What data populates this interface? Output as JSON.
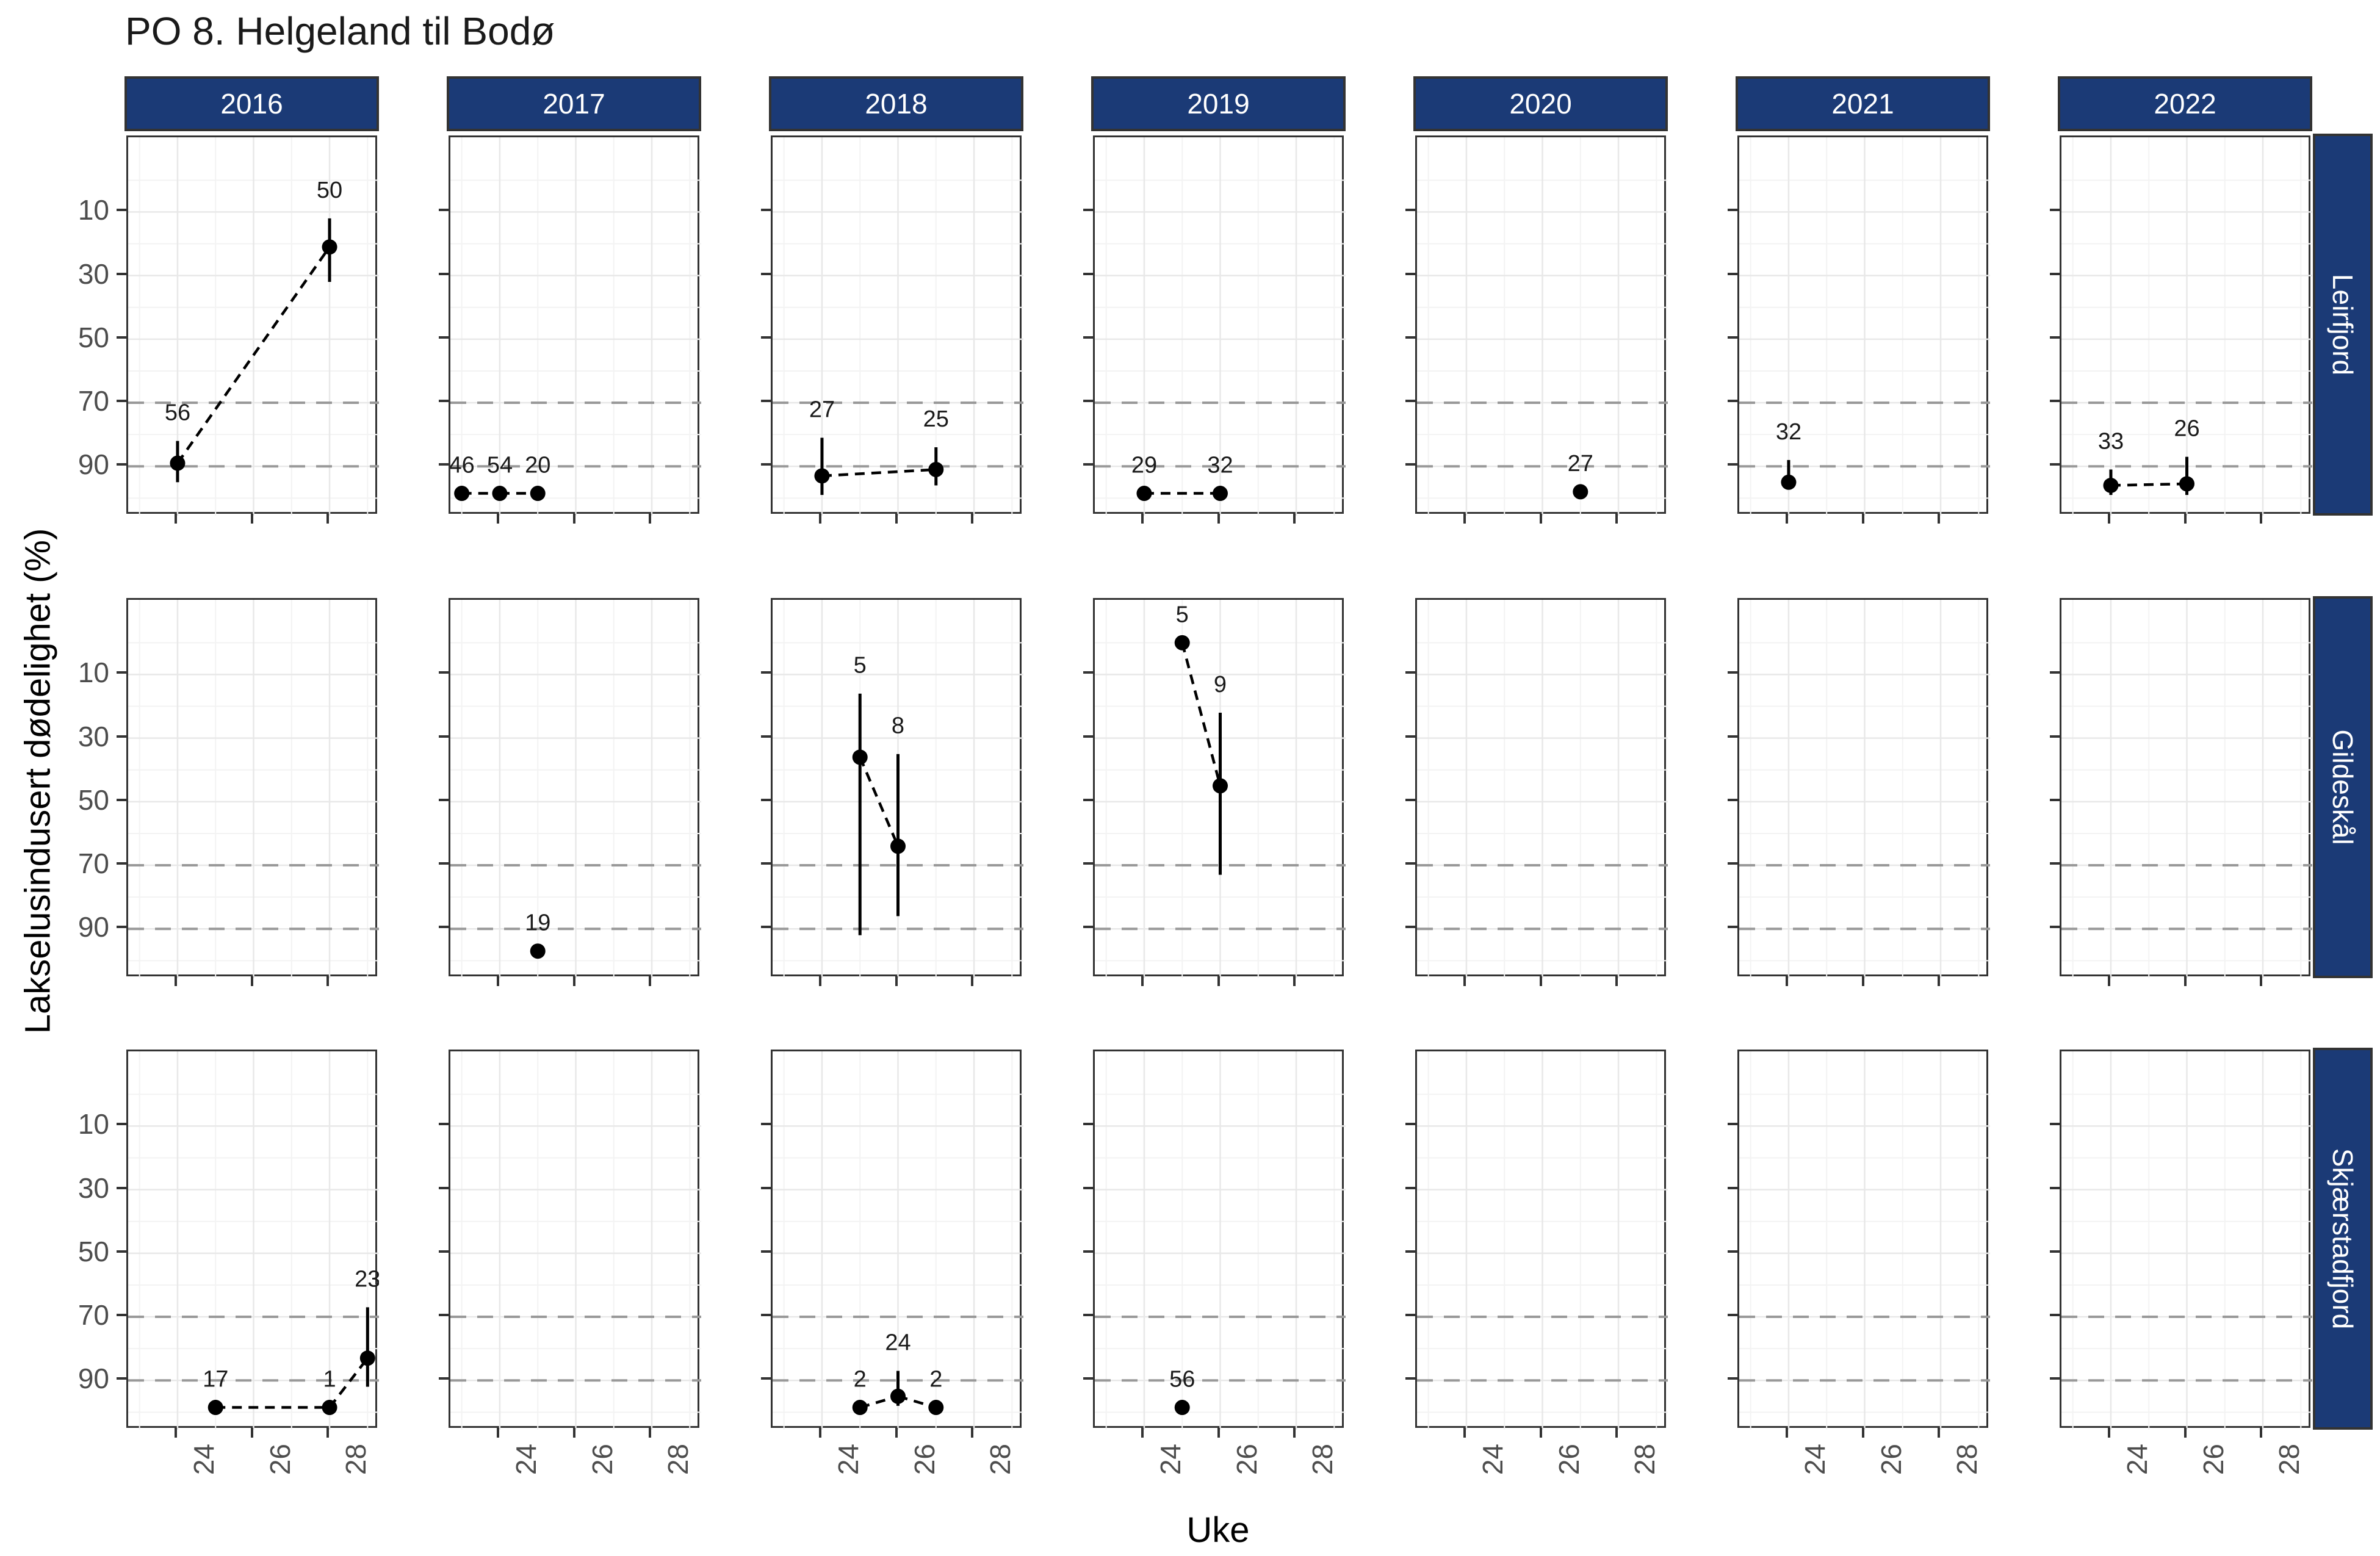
{
  "title": "PO 8. Helgeland til Bodø",
  "axes": {
    "x_label": "Uke",
    "y_label": "Lakselusindusert dødelighet (%)",
    "x_tick_labels": [
      "24",
      "26",
      "28"
    ],
    "y_tick_labels": [
      "90",
      "70",
      "50",
      "30",
      "10"
    ]
  },
  "facets": {
    "col_labels": [
      "2016",
      "2017",
      "2018",
      "2019",
      "2020",
      "2021",
      "2022"
    ],
    "row_labels": [
      "Leirfjord",
      "Gildeskål",
      "Skjærstadfjord"
    ]
  },
  "colors": {
    "strip_bg": "#1b3a76",
    "strip_text": "#ffffff",
    "panel_border": "#333333",
    "grid_major": "#e8e8e8",
    "grid_minor": "#f3f3f3",
    "reference_line": "#999999",
    "axis_text": "#4d4d4d",
    "data_color": "#000000"
  },
  "chart_data": {
    "type": "scatter",
    "title": "PO 8. Helgeland til Bodø",
    "xlabel": "Uke",
    "ylabel": "Lakselusindusert dødelighet (%)",
    "x_domain": [
      22.7,
      29.3
    ],
    "y_domain": [
      -5.5,
      113.5
    ],
    "x_major_ticks": [
      24,
      26,
      28
    ],
    "x_minor_gridlines": [
      23,
      25,
      27,
      29
    ],
    "y_major_ticks": [
      10,
      30,
      50,
      70,
      90
    ],
    "y_minor_gridlines": [
      0,
      20,
      40,
      60,
      80,
      100
    ],
    "reference_lines_y": [
      10,
      30
    ],
    "grid": true,
    "legend": false,
    "facet_cols": [
      "2016",
      "2017",
      "2018",
      "2019",
      "2020",
      "2021",
      "2022"
    ],
    "facet_rows": [
      "Leirfjord",
      "Gildeskål",
      "Skjærstadfjord"
    ],
    "panels": [
      {
        "year": "2016",
        "fjord": "Leirfjord",
        "points": [
          {
            "week": 24,
            "value": 11,
            "ci": [
              5,
              18
            ],
            "label": "56"
          },
          {
            "week": 28,
            "value": 79,
            "ci": [
              68,
              88
            ],
            "label": "50"
          }
        ]
      },
      {
        "year": "2017",
        "fjord": "Leirfjord",
        "points": [
          {
            "week": 23,
            "value": 1.5,
            "ci": null,
            "label": "46"
          },
          {
            "week": 24,
            "value": 1.5,
            "ci": null,
            "label": "54"
          },
          {
            "week": 25,
            "value": 1.5,
            "ci": null,
            "label": "20"
          }
        ]
      },
      {
        "year": "2018",
        "fjord": "Leirfjord",
        "points": [
          {
            "week": 24,
            "value": 7,
            "ci": [
              1,
              19
            ],
            "label": "27"
          },
          {
            "week": 27,
            "value": 9,
            "ci": [
              4,
              16
            ],
            "label": "25"
          }
        ]
      },
      {
        "year": "2019",
        "fjord": "Leirfjord",
        "points": [
          {
            "week": 24,
            "value": 1.5,
            "ci": null,
            "label": "29"
          },
          {
            "week": 26,
            "value": 1.5,
            "ci": null,
            "label": "32"
          }
        ]
      },
      {
        "year": "2020",
        "fjord": "Leirfjord",
        "points": [
          {
            "week": 27,
            "value": 2,
            "ci": null,
            "label": "27"
          }
        ]
      },
      {
        "year": "2021",
        "fjord": "Leirfjord",
        "points": [
          {
            "week": 24,
            "value": 5,
            "ci": [
              3,
              12
            ],
            "label": "32"
          }
        ]
      },
      {
        "year": "2022",
        "fjord": "Leirfjord",
        "points": [
          {
            "week": 24,
            "value": 4,
            "ci": [
              1,
              9
            ],
            "label": "33"
          },
          {
            "week": 26,
            "value": 4.5,
            "ci": [
              1,
              13
            ],
            "label": "26"
          }
        ]
      },
      {
        "year": "2017",
        "fjord": "Gildeskål",
        "points": [
          {
            "week": 25,
            "value": 3,
            "ci": null,
            "label": "19"
          }
        ]
      },
      {
        "year": "2018",
        "fjord": "Gildeskål",
        "points": [
          {
            "week": 25,
            "value": 64,
            "ci": [
              8,
              84
            ],
            "label": "5"
          },
          {
            "week": 26,
            "value": 36,
            "ci": [
              14,
              65
            ],
            "label": "8"
          }
        ]
      },
      {
        "year": "2019",
        "fjord": "Gildeskål",
        "points": [
          {
            "week": 25,
            "value": 100,
            "ci": null,
            "label": "5"
          },
          {
            "week": 26,
            "value": 55,
            "ci": [
              27,
              78
            ],
            "label": "9"
          }
        ]
      },
      {
        "year": "2016",
        "fjord": "Skjærstadfjord",
        "points": [
          {
            "week": 25,
            "value": 1.5,
            "ci": null,
            "label": "17"
          },
          {
            "week": 28,
            "value": 1.5,
            "ci": null,
            "label": "1"
          },
          {
            "week": 29,
            "value": 17,
            "ci": [
              8,
              33
            ],
            "label": "23"
          }
        ]
      },
      {
        "year": "2018",
        "fjord": "Skjærstadfjord",
        "points": [
          {
            "week": 25,
            "value": 1.5,
            "ci": null,
            "label": "2"
          },
          {
            "week": 26,
            "value": 5,
            "ci": [
              2,
              13
            ],
            "label": "24"
          },
          {
            "week": 27,
            "value": 1.5,
            "ci": null,
            "label": "2"
          }
        ]
      },
      {
        "year": "2019",
        "fjord": "Skjærstadfjord",
        "points": [
          {
            "week": 25,
            "value": 1.5,
            "ci": null,
            "label": "56"
          }
        ]
      }
    ]
  }
}
